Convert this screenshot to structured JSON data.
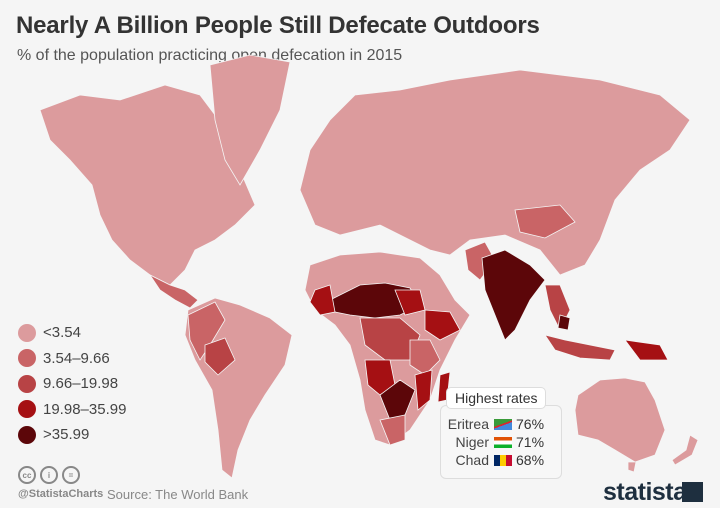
{
  "title": "Nearly A Billion People Still Defecate Outdoors",
  "subtitle": "% of the population practicing open defecation in 2015",
  "colors": {
    "lt3.54": "#dc9b9d",
    "3.54-9.66": "#c96466",
    "9.66-19.98": "#b84345",
    "19.98-35.99": "#a51013",
    "gt35.99": "#5c0609",
    "background": "#f5f5f5"
  },
  "legend": [
    {
      "label": "<3.54",
      "color": "#dc9b9d"
    },
    {
      "label": "3.54–9.66",
      "color": "#c96466"
    },
    {
      "label": "9.66–19.98",
      "color": "#b84345"
    },
    {
      "label": "19.98–35.99",
      "color": "#a51013"
    },
    {
      "label": ">35.99",
      "color": "#5c0609"
    }
  ],
  "highest": {
    "title": "Highest rates",
    "rows": [
      {
        "country": "Eritrea",
        "value": "76%",
        "flag": "eritrea-flag"
      },
      {
        "country": "Niger",
        "value": "71%",
        "flag": "niger-flag"
      },
      {
        "country": "Chad",
        "value": "68%",
        "flag": "chad-flag"
      }
    ]
  },
  "footer": {
    "handle": "@StatistaCharts",
    "source": "Source: The World Bank",
    "brand": "statista",
    "license_icons": [
      "cc",
      "by",
      "nd"
    ]
  }
}
